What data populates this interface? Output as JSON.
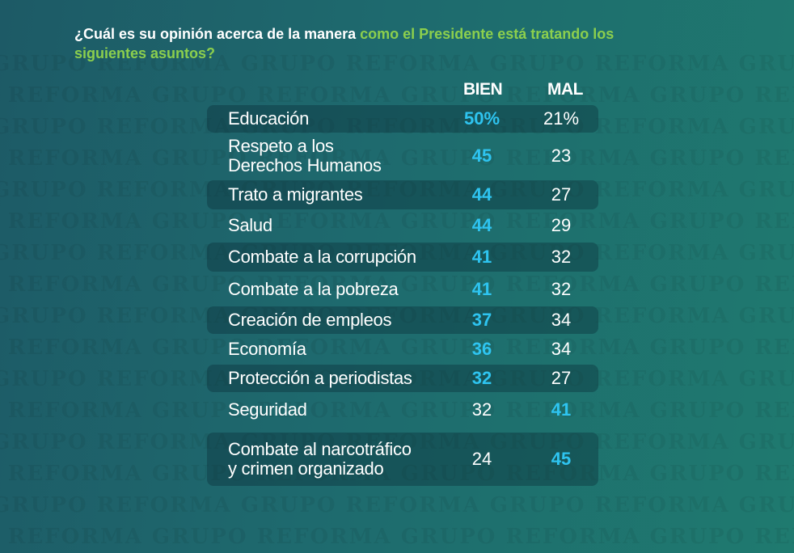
{
  "title": {
    "part1": "¿Cuál es su opinión acerca de la manera ",
    "part2": "como el Presidente está tratando los siguientes asuntos?"
  },
  "watermark": "GRUPO REFORMA",
  "colors": {
    "background": "#1e6a6e",
    "highlight": "#2ec4f0",
    "title_accent": "#8ccf4d",
    "text": "#ffffff"
  },
  "chart_data": {
    "type": "table",
    "columns": [
      "BIEN",
      "MAL"
    ],
    "rows": [
      {
        "label": "Educación",
        "bien": "50%",
        "mal": "21%",
        "highlight": "bien"
      },
      {
        "label": "Respeto a los\nDerechos Humanos",
        "bien": "45",
        "mal": "23",
        "highlight": "bien"
      },
      {
        "label": "Trato a migrantes",
        "bien": "44",
        "mal": "27",
        "highlight": "bien"
      },
      {
        "label": "Salud",
        "bien": "44",
        "mal": "29",
        "highlight": "bien"
      },
      {
        "label": "Combate a la corrupción",
        "bien": "41",
        "mal": "32",
        "highlight": "bien"
      },
      {
        "label": "Combate a la pobreza",
        "bien": "41",
        "mal": "32",
        "highlight": "bien"
      },
      {
        "label": "Creación de empleos",
        "bien": "37",
        "mal": "34",
        "highlight": "bien"
      },
      {
        "label": "Economía",
        "bien": "36",
        "mal": "34",
        "highlight": "bien"
      },
      {
        "label": "Protección a periodistas",
        "bien": "32",
        "mal": "27",
        "highlight": "bien"
      },
      {
        "label": "Seguridad",
        "bien": "32",
        "mal": "41",
        "highlight": "mal"
      },
      {
        "label": "Combate al narcotráfico\ny crimen organizado",
        "bien": "24",
        "mal": "45",
        "highlight": "mal"
      }
    ]
  }
}
